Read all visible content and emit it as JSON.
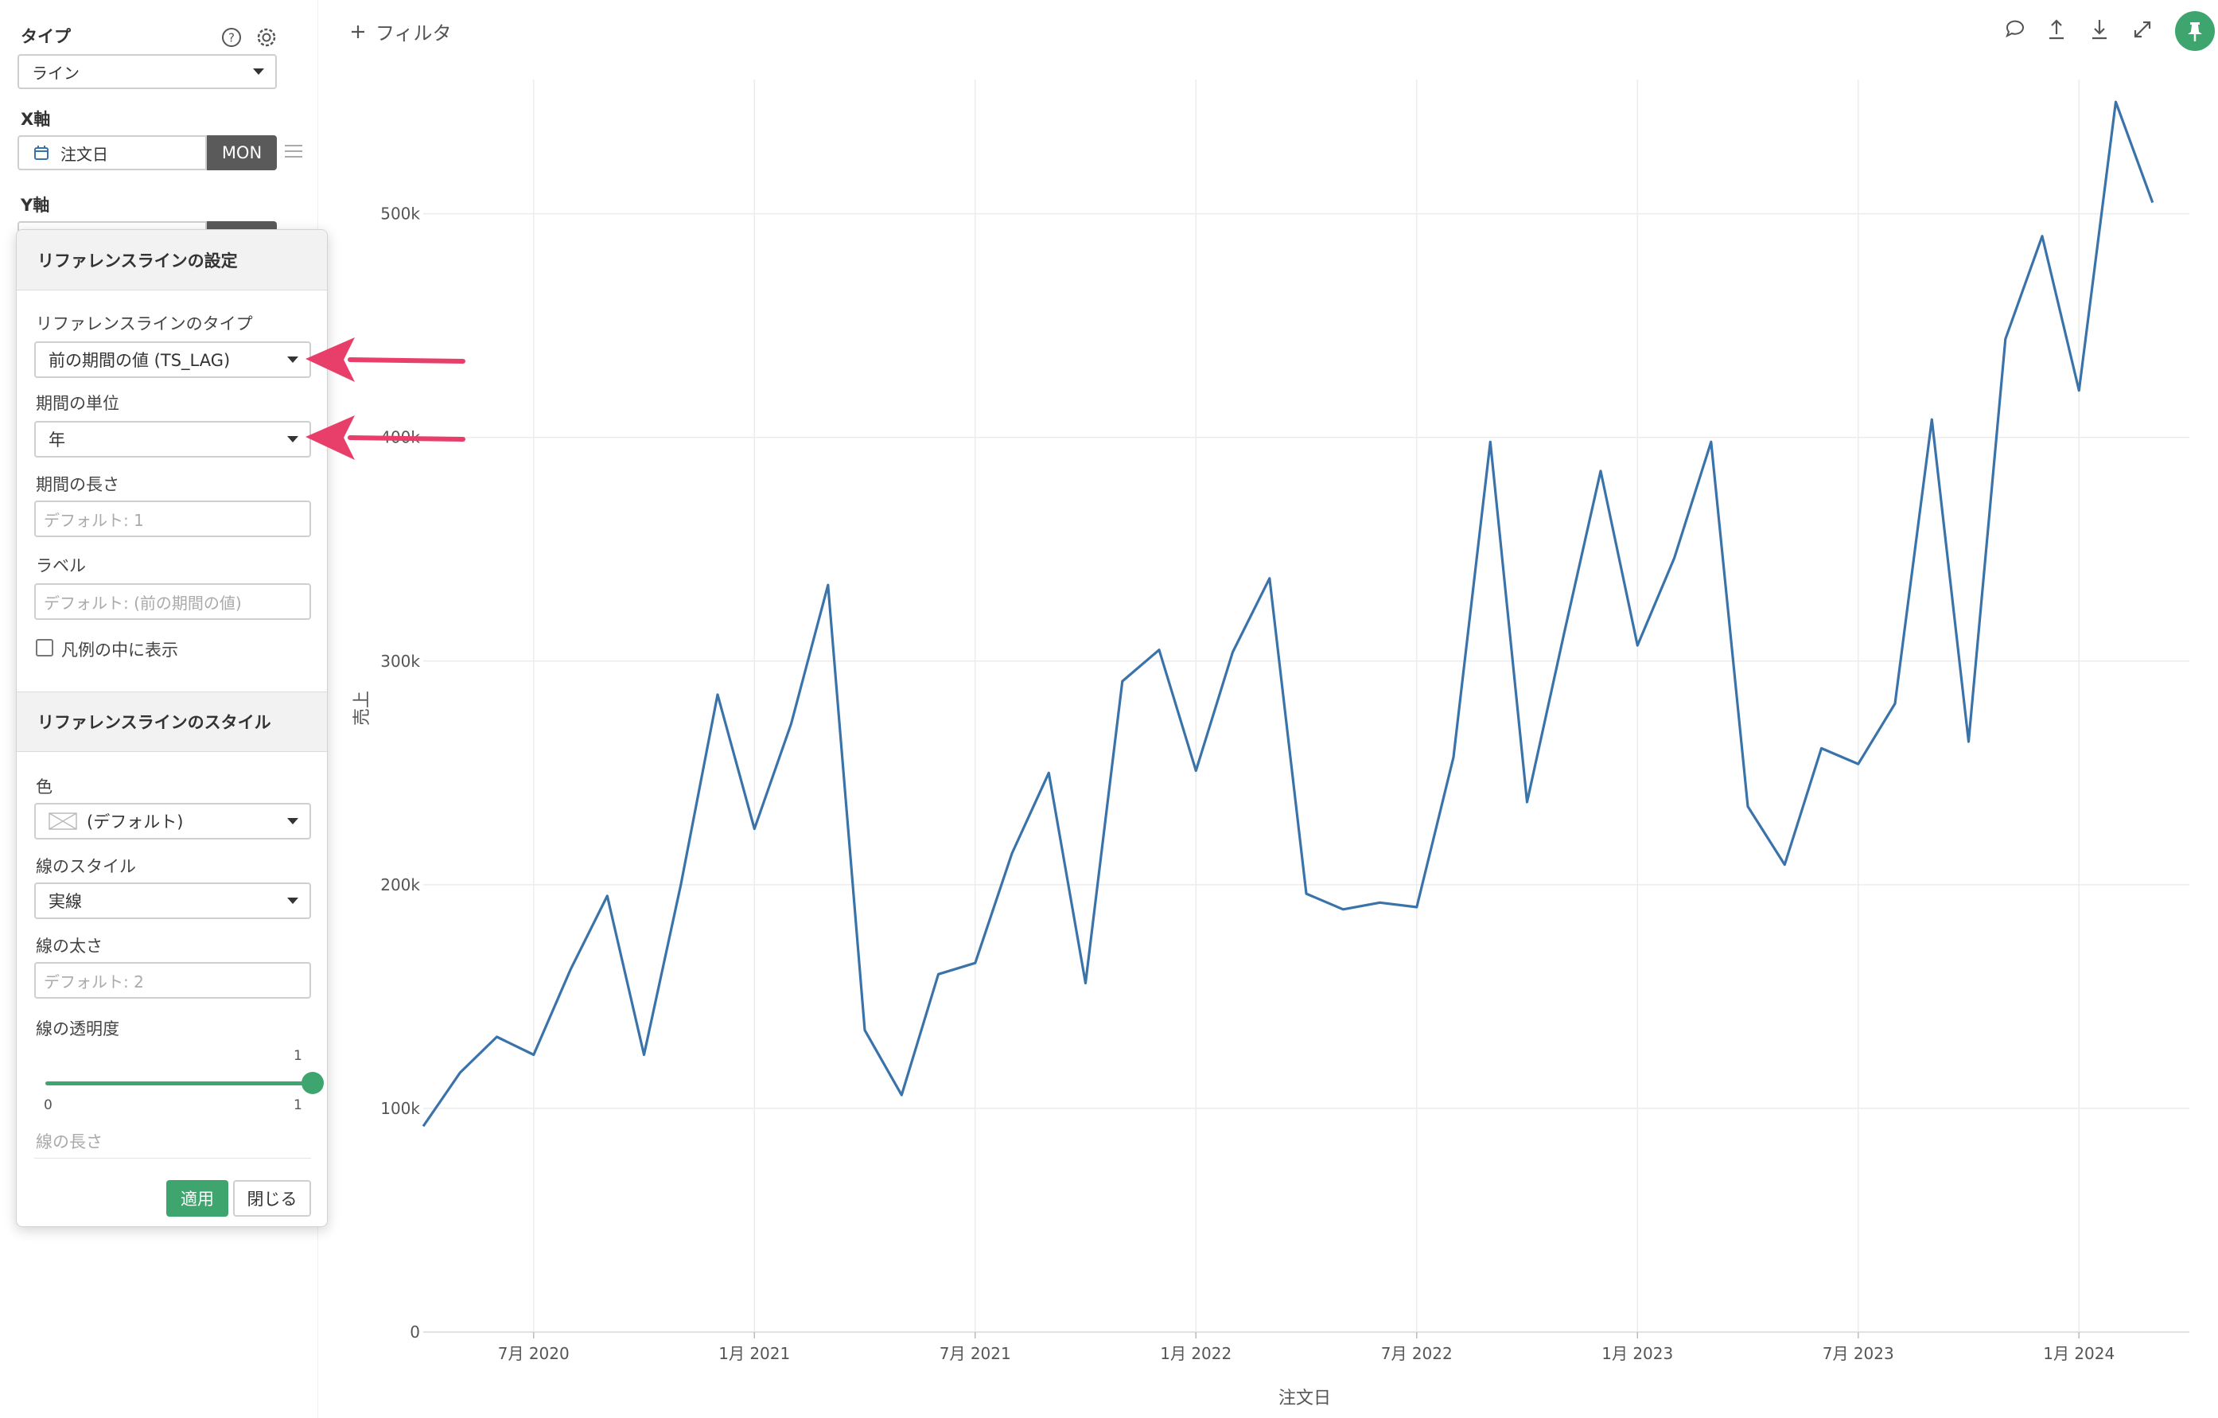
{
  "sidebar": {
    "type_label": "タイプ",
    "type_value": "ライン",
    "xaxis_label": "X軸",
    "xaxis_field": "注文日",
    "xaxis_tag": "MON",
    "yaxis_label": "Y軸"
  },
  "popover": {
    "header_settings": "リファレンスラインの設定",
    "ref_type_label": "リファレンスラインのタイプ",
    "ref_type_value": "前の期間の値 (TS_LAG)",
    "period_unit_label": "期間の単位",
    "period_unit_value": "年",
    "period_length_label": "期間の長さ",
    "period_length_placeholder": "デフォルト: 1",
    "label_label": "ラベル",
    "label_placeholder": "デフォルト: (前の期間の値)",
    "legend_checkbox_label": "凡例の中に表示",
    "header_style": "リファレンスラインのスタイル",
    "color_label": "色",
    "color_value": "(デフォルト)",
    "line_style_label": "線のスタイル",
    "line_style_value": "実線",
    "line_width_label": "線の太さ",
    "line_width_placeholder": "デフォルト: 2",
    "opacity_label": "線の透明度",
    "opacity_value": 1,
    "opacity_value_text": "1",
    "opacity_min": "0",
    "opacity_max": "1",
    "line_length_label": "線の長さ",
    "apply_label": "適用",
    "close_label": "閉じる"
  },
  "toolbar": {
    "add_filter_label": "フィルタ",
    "tools": [
      "comment-icon",
      "upload-icon",
      "download-icon",
      "expand-icon",
      "pin-icon"
    ]
  },
  "colors": {
    "accent": "#3fa56e",
    "line": "#3a73a9",
    "arrow": "#e83e6a",
    "tag_bg": "#5a5a5a"
  },
  "chart_data": {
    "type": "line",
    "xlabel": "注文日",
    "ylabel": "売上",
    "ylim": [
      0,
      560000
    ],
    "yticks": [
      0,
      100000,
      200000,
      300000,
      400000,
      500000
    ],
    "ytick_labels": [
      "0",
      "100k",
      "200k",
      "300k",
      "400k",
      "500k"
    ],
    "xticks": [
      "2020-07",
      "2021-01",
      "2021-07",
      "2022-01",
      "2022-07",
      "2023-01",
      "2023-07",
      "2024-01"
    ],
    "xtick_labels": [
      "7月 2020",
      "1月 2021",
      "7月 2021",
      "1月 2022",
      "7月 2022",
      "1月 2023",
      "7月 2023",
      "1月 2024"
    ],
    "x_range": [
      "2020-04",
      "2024-04"
    ],
    "grid": true,
    "series": [
      {
        "x": [
          "2020-04",
          "2020-05",
          "2020-06",
          "2020-07",
          "2020-08",
          "2020-09",
          "2020-10",
          "2020-11",
          "2020-12",
          "2021-01",
          "2021-02",
          "2021-03",
          "2021-04",
          "2021-05",
          "2021-06",
          "2021-07",
          "2021-08",
          "2021-09",
          "2021-10",
          "2021-11",
          "2021-12",
          "2022-01",
          "2022-02",
          "2022-03",
          "2022-04",
          "2022-05",
          "2022-06",
          "2022-07",
          "2022-08",
          "2022-09",
          "2022-10",
          "2022-11",
          "2022-12",
          "2023-01",
          "2023-02",
          "2023-03",
          "2023-04",
          "2023-05",
          "2023-06",
          "2023-07",
          "2023-08",
          "2023-09",
          "2023-10",
          "2023-11",
          "2023-12",
          "2024-01",
          "2024-02",
          "2024-03"
        ],
        "values": [
          92000,
          116000,
          132000,
          124000,
          162000,
          195000,
          124000,
          200000,
          285000,
          225000,
          272000,
          334000,
          135000,
          106000,
          160000,
          165000,
          214000,
          250000,
          156000,
          291000,
          305000,
          251000,
          304000,
          337000,
          196000,
          189000,
          192000,
          190000,
          257000,
          398000,
          237000,
          312000,
          385000,
          307000,
          346000,
          398000,
          235000,
          209000,
          261000,
          254000,
          281000,
          408000,
          264000,
          444000,
          490000,
          421000,
          550000,
          505000
        ]
      }
    ]
  }
}
